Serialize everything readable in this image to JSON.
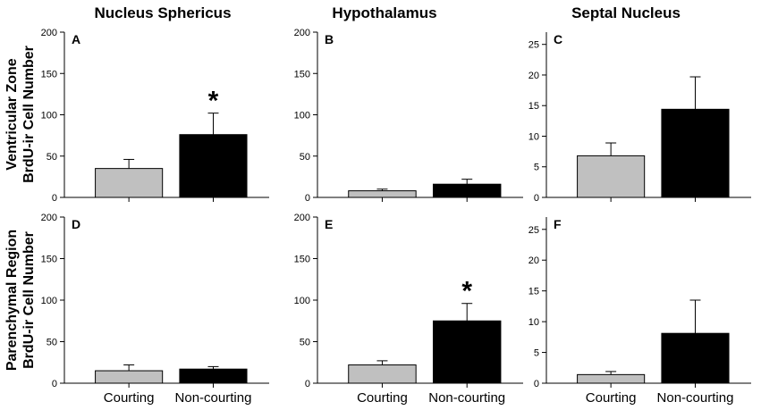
{
  "chart_data": {
    "type": "bar",
    "column_titles": [
      "Nucleus Sphericus",
      "Hypothalamus",
      "Septal Nucleus"
    ],
    "row_titles": [
      [
        "Ventricular Zone",
        "BrdU-ir Cell Number"
      ],
      [
        "Parenchymal Region",
        "BrdU-ir Cell Number"
      ]
    ],
    "categories": [
      "Courting",
      "Non-courting"
    ],
    "bar_colors": [
      "#c0c0c0",
      "#000000"
    ],
    "panels": [
      {
        "letter": "A",
        "ylim": [
          0,
          200
        ],
        "yticks": [
          0,
          50,
          100,
          150,
          200
        ],
        "values": [
          35,
          76
        ],
        "errors": [
          11,
          26
        ],
        "significance": [
          "",
          "*"
        ]
      },
      {
        "letter": "B",
        "ylim": [
          0,
          200
        ],
        "yticks": [
          0,
          50,
          100,
          150,
          200
        ],
        "values": [
          8,
          16
        ],
        "errors": [
          2,
          6
        ],
        "significance": [
          "",
          ""
        ]
      },
      {
        "letter": "C",
        "ylim": [
          0,
          27
        ],
        "yticks": [
          0,
          5,
          10,
          15,
          20,
          25
        ],
        "values": [
          6.8,
          14.4
        ],
        "errors": [
          2.1,
          5.3
        ],
        "significance": [
          "",
          ""
        ]
      },
      {
        "letter": "D",
        "ylim": [
          0,
          200
        ],
        "yticks": [
          0,
          50,
          100,
          150,
          200
        ],
        "values": [
          15,
          17
        ],
        "errors": [
          7,
          3
        ],
        "significance": [
          "",
          ""
        ]
      },
      {
        "letter": "E",
        "ylim": [
          0,
          200
        ],
        "yticks": [
          0,
          50,
          100,
          150,
          200
        ],
        "values": [
          22,
          75
        ],
        "errors": [
          5,
          21
        ],
        "significance": [
          "",
          "*"
        ]
      },
      {
        "letter": "F",
        "ylim": [
          0,
          27
        ],
        "yticks": [
          0,
          5,
          10,
          15,
          20,
          25
        ],
        "values": [
          1.4,
          8.1
        ],
        "errors": [
          0.5,
          5.4
        ],
        "significance": [
          "",
          ""
        ]
      }
    ]
  }
}
